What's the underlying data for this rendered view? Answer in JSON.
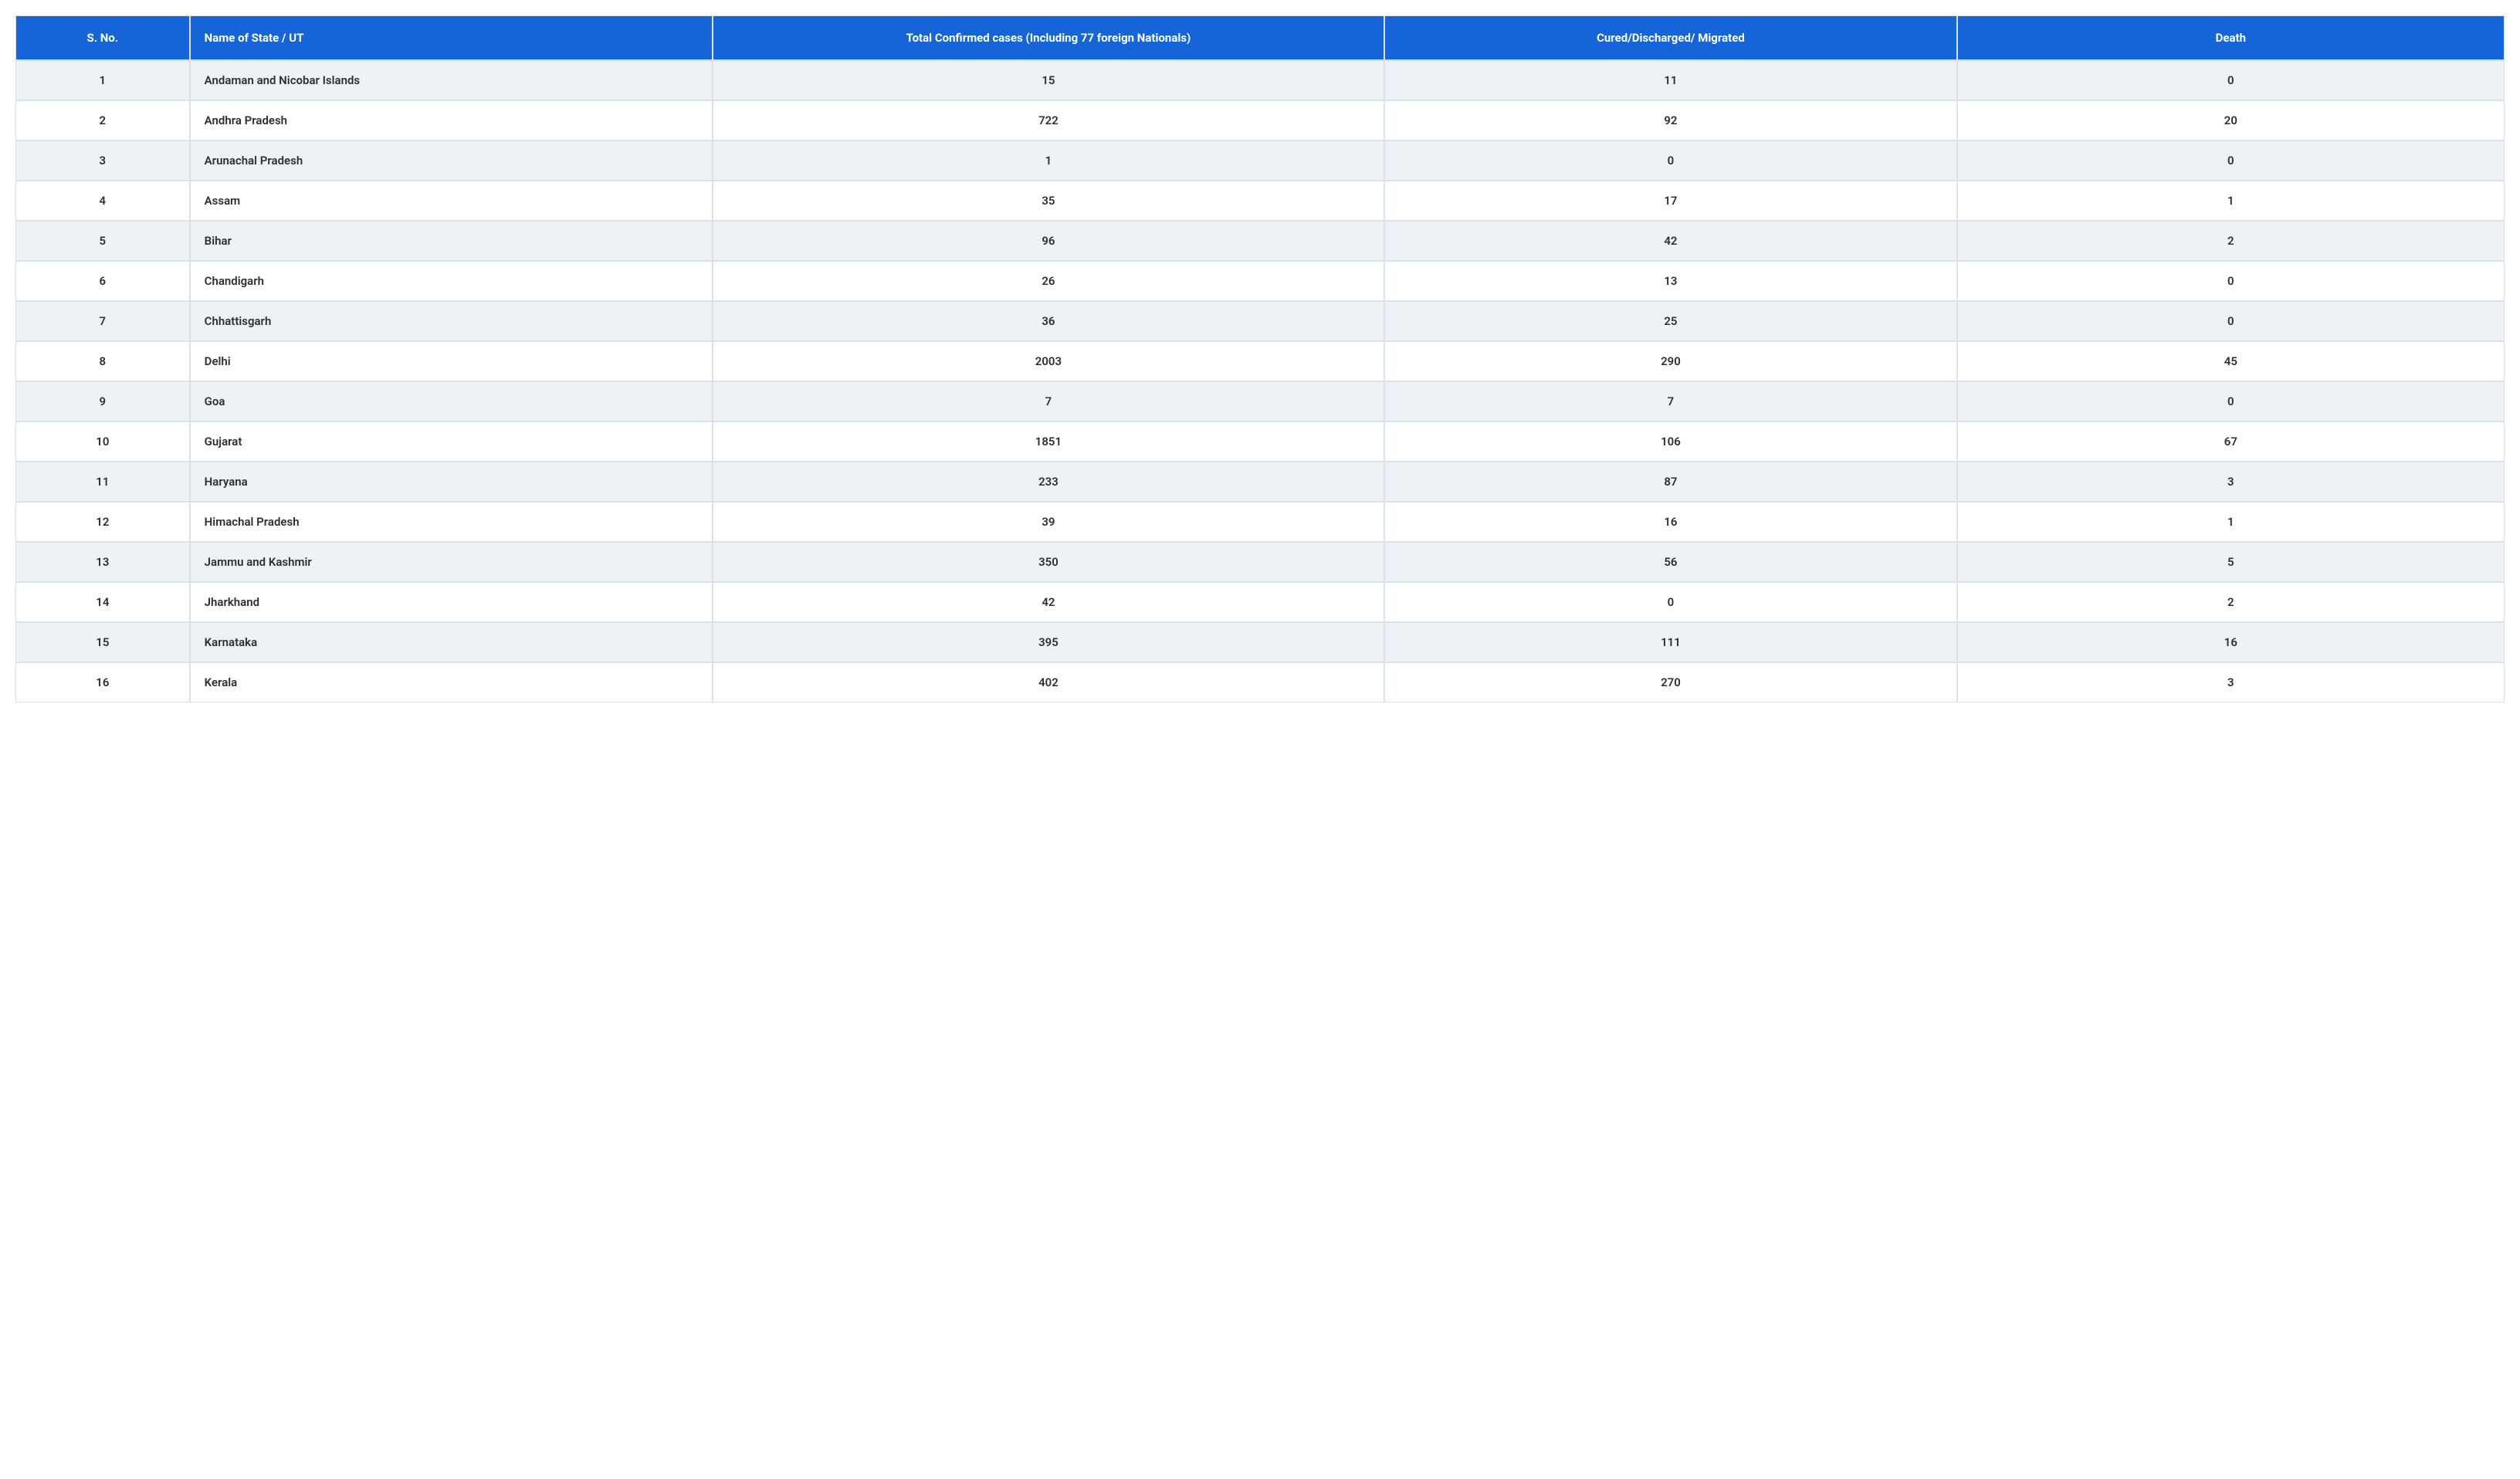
{
  "table": {
    "type": "table",
    "header_bg": "#1565d8",
    "header_text_color": "#ffffff",
    "row_odd_bg": "#eef2f7",
    "row_even_bg": "#ffffff",
    "border_color": "#d8e0ea",
    "cell_text_color": "#2a2f36",
    "header_fontsize_pt": 11,
    "cell_fontsize_pt": 11,
    "font_weight_header": 700,
    "font_weight_cell": 600,
    "columns": [
      {
        "key": "sno",
        "label": "S. No.",
        "align": "center",
        "width_pct": 7
      },
      {
        "key": "name",
        "label": "Name of State / UT",
        "align": "left",
        "width_pct": 21
      },
      {
        "key": "confirmed",
        "label": "Total Confirmed cases (Including 77 foreign Nationals)",
        "align": "center",
        "width_pct": 27
      },
      {
        "key": "cured",
        "label": "Cured/Discharged/ Migrated",
        "align": "center",
        "width_pct": 23
      },
      {
        "key": "death",
        "label": "Death",
        "align": "center",
        "width_pct": 22
      }
    ],
    "rows": [
      {
        "sno": "1",
        "name": "Andaman and Nicobar Islands",
        "confirmed": "15",
        "cured": "11",
        "death": "0"
      },
      {
        "sno": "2",
        "name": "Andhra Pradesh",
        "confirmed": "722",
        "cured": "92",
        "death": "20"
      },
      {
        "sno": "3",
        "name": "Arunachal Pradesh",
        "confirmed": "1",
        "cured": "0",
        "death": "0"
      },
      {
        "sno": "4",
        "name": "Assam",
        "confirmed": "35",
        "cured": "17",
        "death": "1"
      },
      {
        "sno": "5",
        "name": "Bihar",
        "confirmed": "96",
        "cured": "42",
        "death": "2"
      },
      {
        "sno": "6",
        "name": "Chandigarh",
        "confirmed": "26",
        "cured": "13",
        "death": "0"
      },
      {
        "sno": "7",
        "name": "Chhattisgarh",
        "confirmed": "36",
        "cured": "25",
        "death": "0"
      },
      {
        "sno": "8",
        "name": "Delhi",
        "confirmed": "2003",
        "cured": "290",
        "death": "45"
      },
      {
        "sno": "9",
        "name": "Goa",
        "confirmed": "7",
        "cured": "7",
        "death": "0"
      },
      {
        "sno": "10",
        "name": "Gujarat",
        "confirmed": "1851",
        "cured": "106",
        "death": "67"
      },
      {
        "sno": "11",
        "name": "Haryana",
        "confirmed": "233",
        "cured": "87",
        "death": "3"
      },
      {
        "sno": "12",
        "name": "Himachal Pradesh",
        "confirmed": "39",
        "cured": "16",
        "death": "1"
      },
      {
        "sno": "13",
        "name": "Jammu and Kashmir",
        "confirmed": "350",
        "cured": "56",
        "death": "5"
      },
      {
        "sno": "14",
        "name": "Jharkhand",
        "confirmed": "42",
        "cured": "0",
        "death": "2"
      },
      {
        "sno": "15",
        "name": "Karnataka",
        "confirmed": "395",
        "cured": "111",
        "death": "16"
      },
      {
        "sno": "16",
        "name": "Kerala",
        "confirmed": "402",
        "cured": "270",
        "death": "3"
      }
    ]
  }
}
